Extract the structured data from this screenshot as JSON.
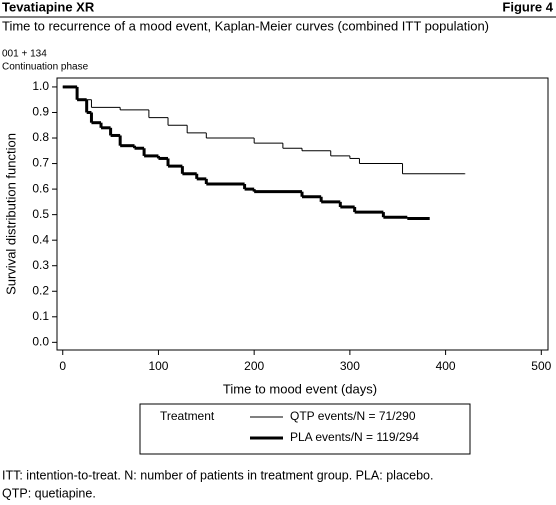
{
  "chart_data": {
    "type": "step",
    "header": "Tevatiapine XR",
    "figure_label": "Figure 4",
    "title": "Time to recurrence of a mood event, Kaplan-Meier curves (combined ITT population)",
    "annotations": [
      "001 + 134",
      "Continuation phase"
    ],
    "xlabel": "Time to mood event (days)",
    "ylabel": "Survival distribution function",
    "legend_title": "Treatment",
    "series": [
      {
        "name": "QTP events/N = 71/290",
        "color": "#000000",
        "line_width": 1,
        "x": [
          0,
          15,
          30,
          60,
          90,
          110,
          130,
          150,
          200,
          230,
          250,
          280,
          300,
          310,
          355,
          420
        ],
        "values": [
          1.0,
          0.95,
          0.92,
          0.91,
          0.88,
          0.85,
          0.82,
          0.8,
          0.78,
          0.76,
          0.75,
          0.73,
          0.72,
          0.7,
          0.66,
          0.66
        ]
      },
      {
        "name": "PLA events/N = 119/294",
        "color": "#000000",
        "line_width": 3,
        "x": [
          0,
          15,
          25,
          30,
          40,
          50,
          60,
          75,
          85,
          100,
          110,
          125,
          140,
          150,
          190,
          200,
          250,
          270,
          290,
          305,
          335,
          360,
          383
        ],
        "values": [
          1.0,
          0.95,
          0.9,
          0.86,
          0.84,
          0.81,
          0.77,
          0.76,
          0.73,
          0.72,
          0.69,
          0.66,
          0.64,
          0.62,
          0.6,
          0.59,
          0.57,
          0.55,
          0.53,
          0.51,
          0.49,
          0.485,
          0.485
        ]
      }
    ],
    "xlim": [
      -6,
      507
    ],
    "ylim": [
      -0.03,
      1.035
    ],
    "xticks": [
      0,
      100,
      200,
      300,
      400,
      500
    ],
    "yticks": [
      {
        "value": 0,
        "label": "0.0"
      },
      0.1,
      0.2,
      0.3,
      0.4,
      0.5,
      0.6,
      0.7,
      0.8,
      0.9,
      {
        "value": 1,
        "label": "1.0"
      }
    ],
    "footnotes": [
      "ITT: intention-to-treat. N: number of patients in treatment group. PLA: placebo.",
      "QTP: quetiapine."
    ]
  }
}
